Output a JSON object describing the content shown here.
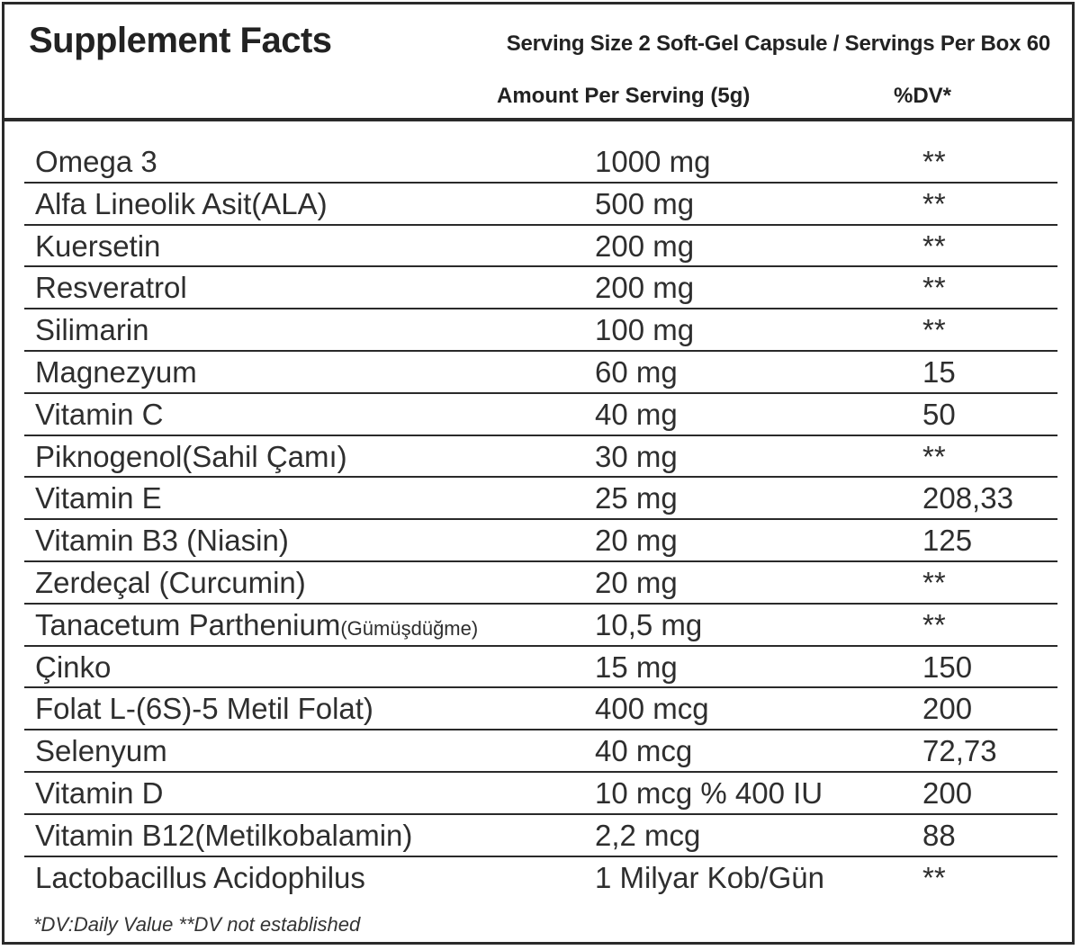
{
  "header": {
    "title": "Supplement Facts",
    "serving": "Serving Size 2 Soft-Gel Capsule / Servings Per Box 60",
    "amount_head": "Amount Per Serving (5g)",
    "dv_head": "%DV*"
  },
  "rows": [
    {
      "name": "Omega 3",
      "sub": "",
      "amount": "1000 mg",
      "dv": "**"
    },
    {
      "name": "Alfa Lineolik Asit(ALA)",
      "sub": "",
      "amount": "500 mg",
      "dv": "**"
    },
    {
      "name": "Kuersetin",
      "sub": "",
      "amount": "200 mg",
      "dv": "**"
    },
    {
      "name": "Resveratrol",
      "sub": "",
      "amount": "200 mg",
      "dv": "**"
    },
    {
      "name": "Silimarin",
      "sub": "",
      "amount": "100 mg",
      "dv": "**"
    },
    {
      "name": "Magnezyum",
      "sub": "",
      "amount": "60 mg",
      "dv": "15"
    },
    {
      "name": "Vitamin C",
      "sub": "",
      "amount": "40 mg",
      "dv": "50"
    },
    {
      "name": "Piknogenol(Sahil Çamı)",
      "sub": "",
      "amount": "30 mg",
      "dv": "**"
    },
    {
      "name": "Vitamin E",
      "sub": "",
      "amount": "25 mg",
      "dv": "208,33"
    },
    {
      "name": "Vitamin B3 (Niasin)",
      "sub": "",
      "amount": "20 mg",
      "dv": "125"
    },
    {
      "name": "Zerdeçal (Curcumin)",
      "sub": "",
      "amount": "20 mg",
      "dv": "**"
    },
    {
      "name": "Tanacetum Parthenium",
      "sub": "(Gümüşdüğme)",
      "amount": "10,5 mg",
      "dv": "**"
    },
    {
      "name": "Çinko",
      "sub": "",
      "amount": "15 mg",
      "dv": "150"
    },
    {
      "name": "Folat L-(6S)-5 Metil Folat)",
      "sub": "",
      "amount": "400 mcg",
      "dv": "200"
    },
    {
      "name": "Selenyum",
      "sub": "",
      "amount": "40 mcg",
      "dv": "72,73"
    },
    {
      "name": "Vitamin D",
      "sub": "",
      "amount": "10 mcg % 400 IU",
      "dv": "200"
    },
    {
      "name": "Vitamin B12(Metilkobalamin)",
      "sub": "",
      "amount": "2,2 mcg",
      "dv": "88"
    },
    {
      "name": "Lactobacillus Acidophilus",
      "sub": "",
      "amount": "1 Milyar Kob/Gün",
      "dv": "**"
    }
  ],
  "footnote": "*DV:Daily Value **DV not established"
}
